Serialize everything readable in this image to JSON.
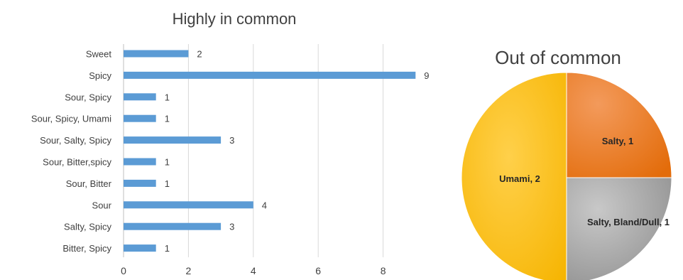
{
  "chart_data": [
    {
      "type": "bar",
      "orientation": "horizontal",
      "title": "Highly in common",
      "categories": [
        "Sweet",
        "Spicy",
        "Sour, Spicy",
        "Sour, Spicy, Umami",
        "Sour, Salty, Spicy",
        "Sour, Bitter,spicy",
        "Sour, Bitter",
        "Sour",
        "Salty, Spicy",
        "Bitter, Spicy"
      ],
      "values": [
        2,
        9,
        1,
        1,
        3,
        1,
        1,
        4,
        3,
        1
      ],
      "data_labels": [
        "2",
        "9",
        "1",
        "1",
        "3",
        "1",
        "1",
        "4",
        "3",
        "1"
      ],
      "xticks": [
        "0",
        "2",
        "4",
        "6",
        "8"
      ],
      "xlim": [
        0,
        10
      ],
      "grid": "vertical",
      "legend": "none",
      "bar_color": "#5b9bd5"
    },
    {
      "type": "pie",
      "title": "Out of common",
      "slices": [
        {
          "label": "Salty, 1",
          "value": 1,
          "color": "#ec7424"
        },
        {
          "label": "Salty, Bland/Dull, 1",
          "value": 1,
          "color": "#a5a5a5"
        },
        {
          "label": "Umami, 2",
          "value": 2,
          "color": "#ffc000"
        }
      ],
      "legend": "none"
    }
  ]
}
